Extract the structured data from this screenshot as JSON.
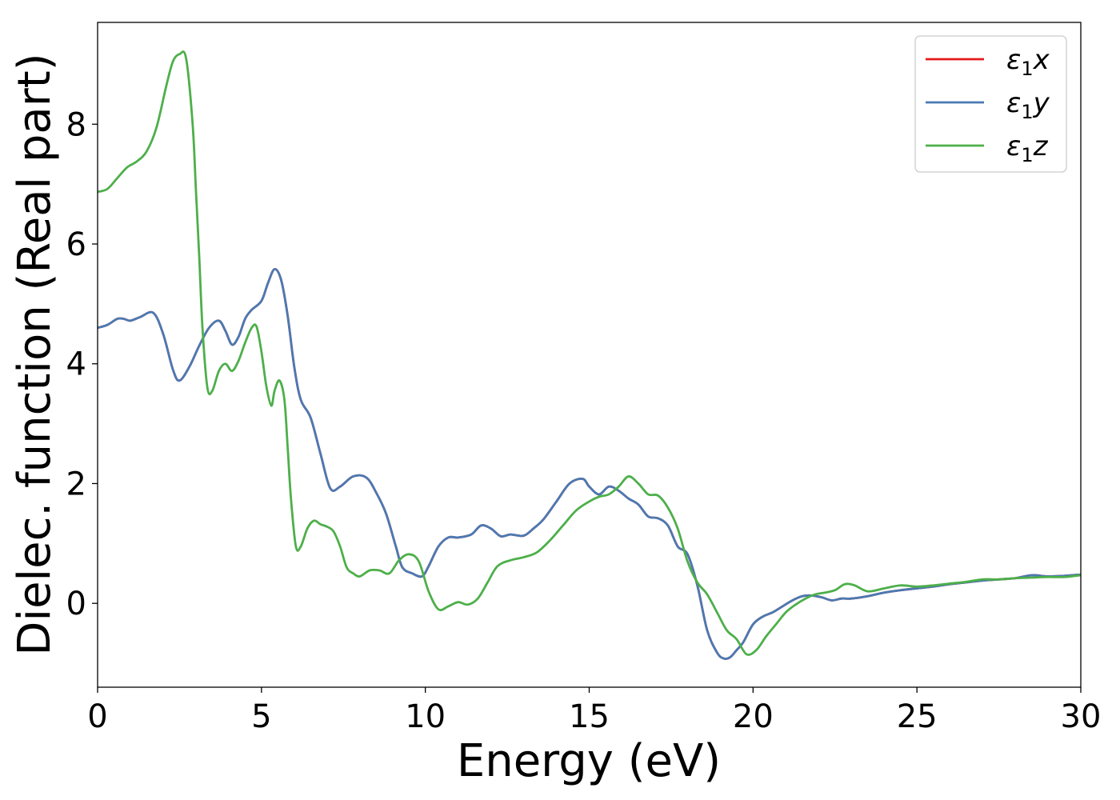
{
  "chart_data": {
    "type": "line",
    "title": "",
    "xlabel": "Energy (eV)",
    "ylabel": "Dielec. function (Real part)",
    "xlim": [
      0,
      30
    ],
    "ylim": [
      -1.4,
      9.7
    ],
    "xticks": [
      0,
      5,
      10,
      15,
      20,
      25,
      30
    ],
    "yticks": [
      0,
      2,
      4,
      6,
      8
    ],
    "grid": false,
    "legend_position": "top-right",
    "series": [
      {
        "name": "ε1x",
        "legend_main": "ε",
        "legend_sub": "1",
        "legend_tail": "x",
        "color": "#e41a1c",
        "x": [
          0,
          0.3,
          0.6,
          0.8,
          1.0,
          1.3,
          1.7,
          2.0,
          2.3,
          2.5,
          2.8,
          3.1,
          3.4,
          3.7,
          3.9,
          4.1,
          4.3,
          4.5,
          4.7,
          5.0,
          5.2,
          5.4,
          5.6,
          5.8,
          6.0,
          6.2,
          6.5,
          6.8,
          7.1,
          7.4,
          7.8,
          8.2,
          8.5,
          8.8,
          9.1,
          9.3,
          9.6,
          9.9,
          10.1,
          10.4,
          10.7,
          11.0,
          11.4,
          11.7,
          12.0,
          12.3,
          12.6,
          13.0,
          13.3,
          13.6,
          14.0,
          14.4,
          14.8,
          15.0,
          15.3,
          15.6,
          15.9,
          16.2,
          16.5,
          16.8,
          17.1,
          17.4,
          17.7,
          18.0,
          18.3,
          18.6,
          18.9,
          19.1,
          19.3,
          19.5,
          19.7,
          20.0,
          20.3,
          20.6,
          20.9,
          21.2,
          21.5,
          21.8,
          22.1,
          22.4,
          22.7,
          23.0,
          23.5,
          24.0,
          24.5,
          25.0,
          25.5,
          26.0,
          26.5,
          27.0,
          27.5,
          28.0,
          28.5,
          29.0,
          29.5,
          30.0
        ],
        "y": [
          4.6,
          4.65,
          4.75,
          4.75,
          4.72,
          4.78,
          4.85,
          4.5,
          3.9,
          3.72,
          3.95,
          4.3,
          4.6,
          4.72,
          4.55,
          4.32,
          4.45,
          4.75,
          4.9,
          5.05,
          5.35,
          5.58,
          5.4,
          4.8,
          3.95,
          3.4,
          3.1,
          2.5,
          1.92,
          1.95,
          2.12,
          2.1,
          1.85,
          1.5,
          0.95,
          0.6,
          0.5,
          0.45,
          0.62,
          0.95,
          1.1,
          1.1,
          1.15,
          1.3,
          1.25,
          1.12,
          1.15,
          1.13,
          1.25,
          1.4,
          1.7,
          2.0,
          2.08,
          1.95,
          1.82,
          1.95,
          1.88,
          1.75,
          1.65,
          1.45,
          1.42,
          1.3,
          0.95,
          0.82,
          0.3,
          -0.45,
          -0.82,
          -0.92,
          -0.9,
          -0.78,
          -0.65,
          -0.35,
          -0.22,
          -0.15,
          -0.05,
          0.05,
          0.12,
          0.13,
          0.1,
          0.05,
          0.08,
          0.08,
          0.12,
          0.18,
          0.22,
          0.25,
          0.28,
          0.32,
          0.35,
          0.38,
          0.4,
          0.42,
          0.47,
          0.45,
          0.46,
          0.48
        ]
      },
      {
        "name": "ε1y",
        "legend_main": "ε",
        "legend_sub": "1",
        "legend_tail": "y",
        "color": "#4a7ab3",
        "x": [
          0,
          0.3,
          0.6,
          0.8,
          1.0,
          1.3,
          1.7,
          2.0,
          2.3,
          2.5,
          2.8,
          3.1,
          3.4,
          3.7,
          3.9,
          4.1,
          4.3,
          4.5,
          4.7,
          5.0,
          5.2,
          5.4,
          5.6,
          5.8,
          6.0,
          6.2,
          6.5,
          6.8,
          7.1,
          7.4,
          7.8,
          8.2,
          8.5,
          8.8,
          9.1,
          9.3,
          9.6,
          9.9,
          10.1,
          10.4,
          10.7,
          11.0,
          11.4,
          11.7,
          12.0,
          12.3,
          12.6,
          13.0,
          13.3,
          13.6,
          14.0,
          14.4,
          14.8,
          15.0,
          15.3,
          15.6,
          15.9,
          16.2,
          16.5,
          16.8,
          17.1,
          17.4,
          17.7,
          18.0,
          18.3,
          18.6,
          18.9,
          19.1,
          19.3,
          19.5,
          19.7,
          20.0,
          20.3,
          20.6,
          20.9,
          21.2,
          21.5,
          21.8,
          22.1,
          22.4,
          22.7,
          23.0,
          23.5,
          24.0,
          24.5,
          25.0,
          25.5,
          26.0,
          26.5,
          27.0,
          27.5,
          28.0,
          28.5,
          29.0,
          29.5,
          30.0
        ],
        "y": [
          4.6,
          4.65,
          4.75,
          4.75,
          4.72,
          4.78,
          4.85,
          4.5,
          3.9,
          3.72,
          3.95,
          4.3,
          4.6,
          4.72,
          4.55,
          4.32,
          4.45,
          4.75,
          4.9,
          5.05,
          5.35,
          5.58,
          5.4,
          4.8,
          3.95,
          3.4,
          3.1,
          2.5,
          1.92,
          1.95,
          2.12,
          2.1,
          1.85,
          1.5,
          0.95,
          0.6,
          0.5,
          0.45,
          0.62,
          0.95,
          1.1,
          1.1,
          1.15,
          1.3,
          1.25,
          1.12,
          1.15,
          1.13,
          1.25,
          1.4,
          1.7,
          2.0,
          2.08,
          1.95,
          1.82,
          1.95,
          1.88,
          1.75,
          1.65,
          1.45,
          1.42,
          1.3,
          0.95,
          0.82,
          0.3,
          -0.45,
          -0.82,
          -0.92,
          -0.9,
          -0.78,
          -0.65,
          -0.35,
          -0.22,
          -0.15,
          -0.05,
          0.05,
          0.12,
          0.13,
          0.1,
          0.05,
          0.08,
          0.08,
          0.12,
          0.18,
          0.22,
          0.25,
          0.28,
          0.32,
          0.35,
          0.38,
          0.4,
          0.42,
          0.47,
          0.45,
          0.46,
          0.48
        ]
      },
      {
        "name": "ε1z",
        "legend_main": "ε",
        "legend_sub": "1",
        "legend_tail": "z",
        "color": "#4daf4a",
        "x": [
          0,
          0.3,
          0.6,
          0.9,
          1.2,
          1.5,
          1.8,
          2.1,
          2.3,
          2.5,
          2.7,
          2.9,
          3.0,
          3.1,
          3.2,
          3.35,
          3.5,
          3.7,
          3.9,
          4.1,
          4.3,
          4.5,
          4.7,
          4.85,
          5.0,
          5.15,
          5.3,
          5.4,
          5.55,
          5.7,
          5.8,
          5.9,
          6.05,
          6.2,
          6.4,
          6.6,
          6.8,
          7.0,
          7.2,
          7.4,
          7.6,
          7.8,
          8.0,
          8.3,
          8.6,
          8.9,
          9.2,
          9.5,
          9.8,
          10.1,
          10.4,
          10.7,
          11.0,
          11.3,
          11.6,
          11.9,
          12.2,
          12.6,
          13.0,
          13.4,
          13.8,
          14.2,
          14.6,
          15.0,
          15.3,
          15.6,
          15.9,
          16.2,
          16.5,
          16.8,
          17.1,
          17.4,
          17.7,
          18.0,
          18.3,
          18.6,
          18.9,
          19.2,
          19.5,
          19.8,
          20.1,
          20.4,
          20.7,
          21.0,
          21.3,
          21.6,
          21.9,
          22.2,
          22.5,
          22.8,
          23.1,
          23.5,
          24.0,
          24.5,
          25.0,
          25.5,
          26.0,
          26.5,
          27.0,
          27.5,
          28.0,
          28.5,
          29.0,
          29.5,
          30.0
        ],
        "y": [
          6.87,
          6.92,
          7.1,
          7.28,
          7.38,
          7.55,
          7.95,
          8.65,
          9.05,
          9.17,
          9.1,
          8.0,
          6.9,
          5.8,
          4.6,
          3.6,
          3.55,
          3.88,
          4.0,
          3.88,
          4.05,
          4.35,
          4.6,
          4.62,
          4.2,
          3.62,
          3.3,
          3.55,
          3.72,
          3.4,
          2.6,
          1.75,
          0.95,
          0.95,
          1.25,
          1.38,
          1.32,
          1.28,
          1.2,
          0.95,
          0.6,
          0.5,
          0.45,
          0.55,
          0.55,
          0.5,
          0.72,
          0.82,
          0.7,
          0.2,
          -0.1,
          -0.05,
          0.02,
          -0.02,
          0.08,
          0.35,
          0.62,
          0.72,
          0.77,
          0.85,
          1.05,
          1.3,
          1.55,
          1.7,
          1.78,
          1.82,
          1.95,
          2.12,
          2.0,
          1.82,
          1.8,
          1.6,
          1.25,
          0.7,
          0.35,
          0.15,
          -0.15,
          -0.45,
          -0.6,
          -0.85,
          -0.78,
          -0.55,
          -0.35,
          -0.15,
          -0.02,
          0.08,
          0.15,
          0.18,
          0.22,
          0.32,
          0.3,
          0.2,
          0.25,
          0.3,
          0.28,
          0.3,
          0.33,
          0.36,
          0.4,
          0.4,
          0.42,
          0.43,
          0.44,
          0.44,
          0.47
        ]
      }
    ]
  }
}
